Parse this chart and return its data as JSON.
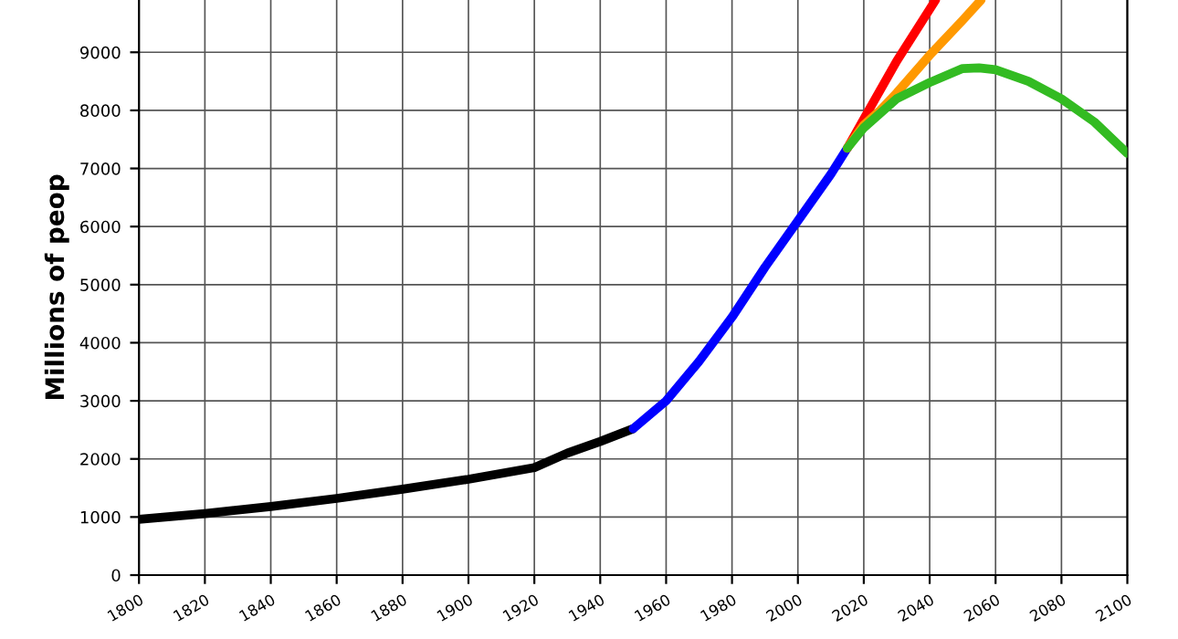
{
  "chart_data": {
    "type": "line",
    "ylabel": "Millions of peop",
    "xlim": [
      1800,
      2100
    ],
    "ylim": [
      0,
      9900
    ],
    "xticks": [
      1800,
      1820,
      1840,
      1860,
      1880,
      1900,
      1920,
      1940,
      1960,
      1980,
      2000,
      2020,
      2040,
      2060,
      2080,
      2100
    ],
    "yticks": [
      0,
      1000,
      2000,
      3000,
      4000,
      5000,
      6000,
      7000,
      8000,
      9000
    ],
    "grid": true,
    "marker": "none",
    "line_style": "solid",
    "series": [
      {
        "color": "#000000",
        "x": [
          1800,
          1820,
          1840,
          1860,
          1880,
          1900,
          1920,
          1930,
          1940,
          1950
        ],
        "values": [
          960,
          1060,
          1180,
          1320,
          1480,
          1650,
          1850,
          2100,
          2300,
          2520
        ]
      },
      {
        "color": "#0000ff",
        "x": [
          1950,
          1960,
          1970,
          1980,
          1990,
          2000,
          2010,
          2015
        ],
        "values": [
          2520,
          3000,
          3680,
          4440,
          5300,
          6100,
          6900,
          7350
        ]
      },
      {
        "color": "#ff0000",
        "x": [
          2015,
          2020,
          2030,
          2041.8
        ],
        "values": [
          7350,
          7850,
          8850,
          9900
        ]
      },
      {
        "color": "#ff9900",
        "x": [
          2015,
          2020,
          2025,
          2030,
          2040,
          2050,
          2055.6
        ],
        "values": [
          7350,
          7750,
          8000,
          8300,
          8950,
          9550,
          9900
        ]
      },
      {
        "color": "#33bb22",
        "x": [
          2015,
          2020,
          2030,
          2040,
          2050,
          2055,
          2060,
          2070,
          2080,
          2090,
          2100
        ],
        "values": [
          7350,
          7700,
          8200,
          8480,
          8720,
          8730,
          8700,
          8500,
          8200,
          7800,
          7260
        ]
      }
    ]
  }
}
